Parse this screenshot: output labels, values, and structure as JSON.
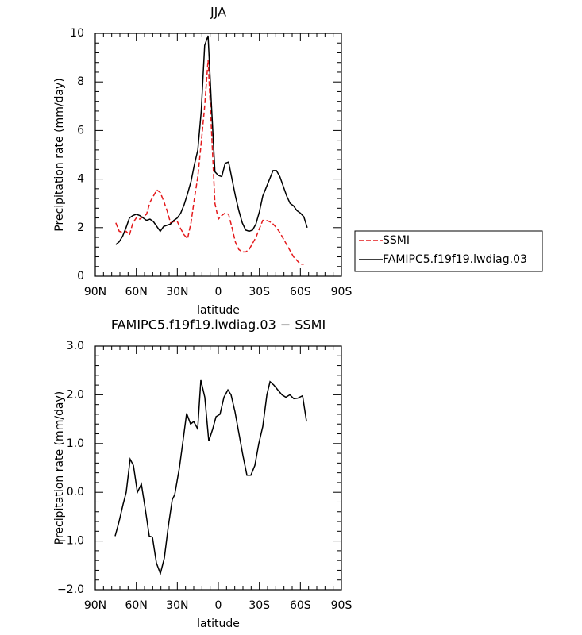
{
  "chart_data": [
    {
      "type": "line",
      "title": "JJA",
      "xlabel": "latitude",
      "ylabel": "Precipitation rate (mm/day)",
      "x": [
        75,
        72.5,
        70,
        67.5,
        65,
        62.5,
        60,
        57.5,
        55,
        52.5,
        50,
        47.5,
        45,
        42.5,
        40,
        37.5,
        35,
        32.5,
        30,
        27.5,
        25,
        22.5,
        20,
        17.5,
        15,
        12.5,
        10,
        7.5,
        5,
        2.5,
        0,
        -2.5,
        -5,
        -7.5,
        -10,
        -12.5,
        -15,
        -17.5,
        -20,
        -22.5,
        -25,
        -27.5,
        -30,
        -32.5,
        -35,
        -37.5,
        -40,
        -42.5,
        -45,
        -47.5,
        -50,
        -52.5,
        -55,
        -57.5,
        -60,
        -62.5,
        -65
      ],
      "series": [
        {
          "name": "SSMI",
          "color": "#e41a1c",
          "linestyle": "dashed",
          "values": [
            2.2,
            1.85,
            1.8,
            1.85,
            1.7,
            2.2,
            2.4,
            2.35,
            2.45,
            2.55,
            3.05,
            3.3,
            3.55,
            3.45,
            3.1,
            2.7,
            2.2,
            2.25,
            2.25,
            1.95,
            1.7,
            1.55,
            2.2,
            3.2,
            4.1,
            5.5,
            7.0,
            8.9,
            6.0,
            3.0,
            2.35,
            2.5,
            2.6,
            2.55,
            2.0,
            1.4,
            1.1,
            1.0,
            1.0,
            1.1,
            1.35,
            1.6,
            1.95,
            2.3,
            2.3,
            2.25,
            2.15,
            2.0,
            1.8,
            1.55,
            1.3,
            1.05,
            0.8,
            0.65,
            0.5,
            0.5,
            null
          ]
        },
        {
          "name": "FAMIPC5.f19f19.lwdiag.03",
          "color": "#000000",
          "linestyle": "solid",
          "values": [
            1.3,
            1.42,
            1.65,
            2.0,
            2.4,
            2.5,
            2.55,
            2.5,
            2.4,
            2.3,
            2.35,
            2.25,
            2.05,
            1.85,
            2.05,
            2.1,
            2.15,
            2.3,
            2.4,
            2.6,
            2.95,
            3.4,
            3.9,
            4.6,
            5.2,
            6.8,
            9.5,
            9.9,
            7.0,
            4.3,
            4.15,
            4.1,
            4.65,
            4.7,
            4.0,
            3.3,
            2.7,
            2.2,
            1.9,
            1.85,
            1.9,
            2.15,
            2.65,
            3.3,
            3.65,
            4.0,
            4.35,
            4.35,
            4.1,
            3.7,
            3.3,
            3.0,
            2.9,
            2.7,
            2.6,
            2.45,
            2.0
          ]
        }
      ],
      "xlim": [
        90,
        -90
      ],
      "xticks": [
        {
          "value": 90,
          "label": "90N"
        },
        {
          "value": 60,
          "label": "60N"
        },
        {
          "value": 30,
          "label": "30N"
        },
        0,
        {
          "value": -30,
          "label": "30S"
        },
        {
          "value": -60,
          "label": "60S"
        },
        {
          "value": -90,
          "label": "90S"
        }
      ],
      "ylim": [
        0,
        10
      ],
      "yticks": [
        0,
        2,
        4,
        6,
        8,
        10
      ],
      "legend": "right"
    },
    {
      "type": "line",
      "title": "FAMIPC5.f19f19.lwdiag.03 − SSMI",
      "xlabel": "latitude",
      "ylabel": "Precipitation rate (mm/day)",
      "x": [
        75.5,
        72.6,
        69.7,
        67.4,
        64.5,
        62.1,
        59.2,
        56.3,
        53.4,
        50.5,
        48.2,
        45.3,
        42.4,
        39.5,
        36.6,
        33.7,
        31.9,
        28.5,
        26.1,
        23.2,
        20.3,
        18.0,
        15.1,
        12.8,
        9.9,
        7.0,
        4.1,
        1.7,
        -1.2,
        -4.1,
        -7.0,
        -9.3,
        -12.2,
        -15.1,
        -18.0,
        -20.9,
        -23.8,
        -26.7,
        -29.6,
        -32.5,
        -35.5,
        -37.8,
        -40.6,
        -43.5,
        -46.5,
        -49.4,
        -52.3,
        -55.2,
        -58.1,
        -61.6,
        -64.5
      ],
      "values": [
        -0.9,
        -0.6,
        -0.25,
        0.0,
        0.68,
        0.55,
        0.0,
        0.17,
        -0.35,
        -0.9,
        -0.92,
        -1.45,
        -1.67,
        -1.35,
        -0.7,
        -0.15,
        -0.05,
        0.5,
        1.0,
        1.62,
        1.4,
        1.45,
        1.3,
        2.3,
        1.95,
        1.05,
        1.3,
        1.55,
        1.6,
        1.95,
        2.1,
        2.0,
        1.65,
        1.2,
        0.75,
        0.35,
        0.35,
        0.55,
        1.0,
        1.35,
        2.0,
        2.27,
        2.2,
        2.1,
        2.0,
        1.95,
        2.0,
        1.92,
        1.93,
        1.98,
        1.45
      ],
      "color": "#000000",
      "xlim": [
        90,
        -90
      ],
      "xticks": [
        {
          "value": 90,
          "label": "90N"
        },
        {
          "value": 60,
          "label": "60N"
        },
        {
          "value": 30,
          "label": "30N"
        },
        0,
        {
          "value": -30,
          "label": "30S"
        },
        {
          "value": -60,
          "label": "60S"
        },
        {
          "value": -90,
          "label": "90S"
        }
      ],
      "ylim": [
        -2,
        3
      ],
      "yticks": [
        {
          "value": -2,
          "label": "−2.0"
        },
        {
          "value": -1,
          "label": "−1.0"
        },
        {
          "value": 0,
          "label": "0.0"
        },
        {
          "value": 1,
          "label": "1.0"
        },
        {
          "value": 2,
          "label": "2.0"
        },
        {
          "value": 3,
          "label": "3.0"
        }
      ]
    }
  ]
}
